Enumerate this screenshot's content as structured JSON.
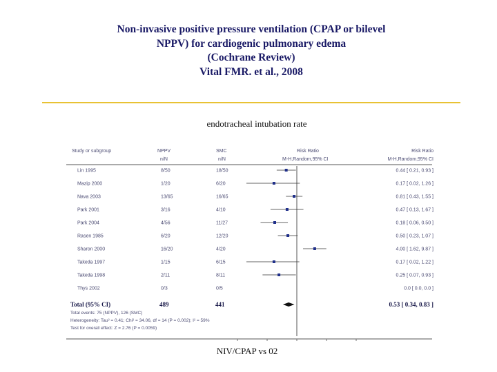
{
  "title_lines": [
    "Non-invasive positive pressure ventilation (CPAP or bilevel",
    "NPPV) for cardiogenic pulmonary edema",
    "(Cochrane Review)",
    "Vital FMR. et al., 2008"
  ],
  "subtitle": "endotracheal intubation rate",
  "caption": "NIV/CPAP vs 02",
  "colors": {
    "title": "#1a1a66",
    "rule": "#e8c234",
    "marker": "#1f2f8a",
    "text": "#4a4a72"
  },
  "chart_data": {
    "type": "forest",
    "headers": {
      "study": "Study or subgroup",
      "nppv": "NPPV",
      "smc": "SMC",
      "rr_center": "Risk Ratio",
      "rr_right": "Risk Ratio",
      "nppv_sub": "n/N",
      "smc_sub": "n/N",
      "rr_center_sub": "M-H,Random,95% CI",
      "rr_right_sub": "M-H,Random,95% CI"
    },
    "log_scale": true,
    "x_range": [
      0.01,
      100
    ],
    "null_value": 1,
    "studies": [
      {
        "name": "Lin 1995",
        "nppv": "8/50",
        "smc": "18/50",
        "rr": 0.44,
        "lo": 0.21,
        "hi": 0.93,
        "rr_text": "0.44 [ 0.21, 0.93 ]"
      },
      {
        "name": "Mazip 2000",
        "nppv": "1/20",
        "smc": "6/20",
        "rr": 0.17,
        "lo": 0.02,
        "hi": 1.26,
        "rr_text": "0.17 [ 0.02, 1.26 ]"
      },
      {
        "name": "Nava 2003",
        "nppv": "13/65",
        "smc": "16/65",
        "rr": 0.81,
        "lo": 0.43,
        "hi": 1.55,
        "rr_text": "0.81 [ 0.43, 1.55 ]"
      },
      {
        "name": "Park 2001",
        "nppv": "3/16",
        "smc": "4/10",
        "rr": 0.47,
        "lo": 0.13,
        "hi": 1.67,
        "rr_text": "0.47 [ 0.13, 1.67 ]"
      },
      {
        "name": "Park 2004",
        "nppv": "4/56",
        "smc": "11/27",
        "rr": 0.18,
        "lo": 0.06,
        "hi": 0.5,
        "rr_text": "0.18 [ 0.06, 0.50 ]"
      },
      {
        "name": "Rasen 1985",
        "nppv": "6/20",
        "smc": "12/20",
        "rr": 0.5,
        "lo": 0.23,
        "hi": 1.07,
        "rr_text": "0.50 [ 0.23, 1.07 ]"
      },
      {
        "name": "Sharon 2000",
        "nppv": "16/20",
        "smc": "4/20",
        "rr": 4.0,
        "lo": 1.62,
        "hi": 9.87,
        "rr_text": "4.00 [ 1.62, 9.87 ]"
      },
      {
        "name": "Takeda 1997",
        "nppv": "1/15",
        "smc": "6/15",
        "rr": 0.17,
        "lo": 0.02,
        "hi": 1.22,
        "rr_text": "0.17 [ 0.02, 1.22 ]"
      },
      {
        "name": "Takeda 1998",
        "nppv": "2/11",
        "smc": "8/11",
        "rr": 0.25,
        "lo": 0.07,
        "hi": 0.93,
        "rr_text": "0.25 [ 0.07, 0.93 ]"
      },
      {
        "name": "Thys 2002",
        "nppv": "0/3",
        "smc": "0/5",
        "rr": null,
        "lo": null,
        "hi": null,
        "rr_text": "0.0 [ 0.0, 0.0 ]"
      }
    ],
    "total": {
      "name": "Total (95% CI)",
      "nppv": "489",
      "smc": "441",
      "rr": 0.53,
      "lo": 0.34,
      "hi": 0.83,
      "rr_text": "0.53 [ 0.34, 0.83 ]"
    },
    "footnotes": [
      "Total events: 75 (NPPV), 126 (SMC)",
      "Heterogeneity: Tau² = 0.41; Chi² = 34.06, df = 14 (P = 0.002); I² = 59%",
      "Test for overall effect: Z = 2.76 (P = 0.0059)"
    ]
  }
}
